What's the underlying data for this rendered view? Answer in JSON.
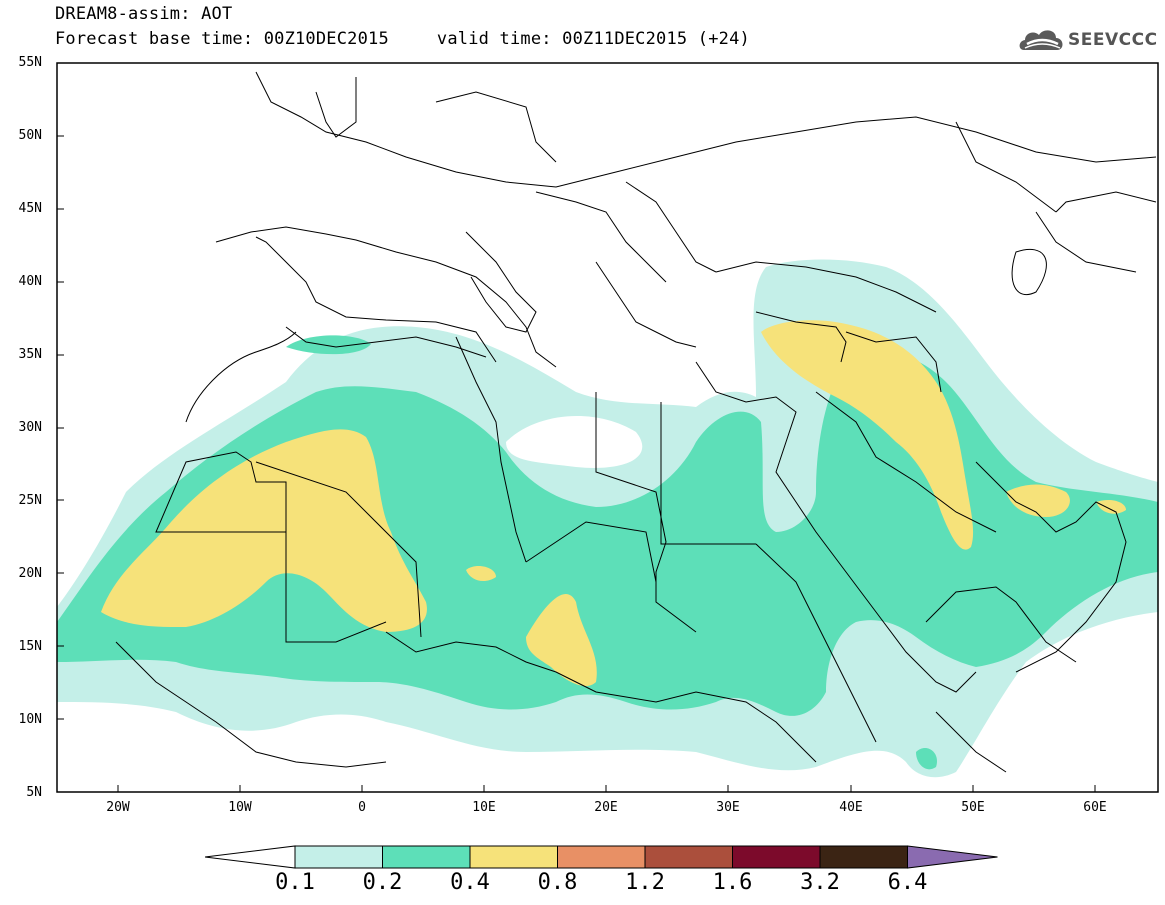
{
  "title": {
    "line1": "DREAM8-assim: AOT",
    "base": "Forecast base time: 00Z10DEC2015",
    "valid": "valid time: 00Z11DEC2015 (+24)"
  },
  "logo": {
    "text": "SEEVCCC",
    "icon": "cloud-icon"
  },
  "map": {
    "lat_labels": [
      "55N",
      "50N",
      "45N",
      "40N",
      "35N",
      "30N",
      "25N",
      "20N",
      "15N",
      "10N",
      "5N"
    ],
    "lon_labels": [
      "20W",
      "10W",
      "0",
      "10E",
      "20E",
      "30E",
      "40E",
      "50E",
      "60E"
    ],
    "field": "AOT",
    "colors": {
      "0.1-0.2": "#c4efe8",
      "0.2-0.4": "#5ddfb8",
      "0.4-0.8": "#f6e27a"
    }
  },
  "colorbar": {
    "levels": [
      "0.1",
      "0.2",
      "0.4",
      "0.8",
      "1.2",
      "1.6",
      "3.2",
      "6.4"
    ],
    "colors": [
      "#ffffff",
      "#c4efe8",
      "#5ddfb8",
      "#f6e27a",
      "#e89065",
      "#ab4f3c",
      "#7c0a2b",
      "#3b2414",
      "#8a6bb0"
    ]
  }
}
